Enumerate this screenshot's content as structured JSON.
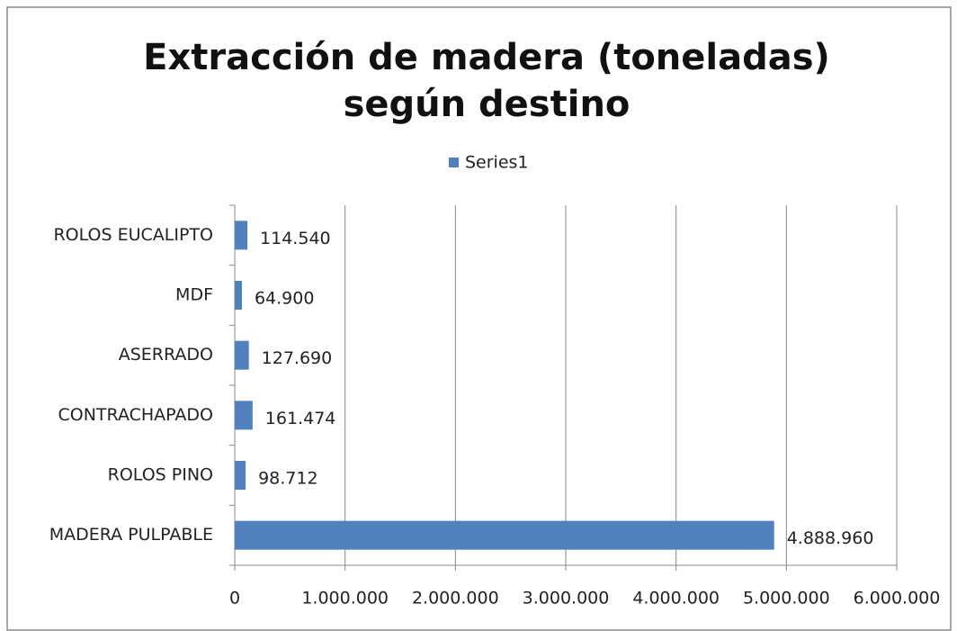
{
  "chart_data": {
    "type": "bar",
    "orientation": "horizontal",
    "title": "Extracción de madera (toneladas) según destino",
    "categories": [
      "MADERA PULPABLE",
      "ROLOS PINO",
      "CONTRACHAPADO",
      "ASERRADO",
      "MDF",
      "ROLOS EUCALIPTO"
    ],
    "series": [
      {
        "name": "Series1",
        "color": "#4f81bd",
        "values": [
          4888960,
          98712,
          161474,
          127690,
          64900,
          114540
        ],
        "value_labels": [
          "4.888.960",
          "98.712",
          "161.474",
          "127.690",
          "64.900",
          "114.540"
        ]
      }
    ],
    "xlim": [
      0,
      6000000
    ],
    "xticks": [
      0,
      {
        "value": 1000000,
        "label": "1.000.000"
      },
      {
        "value": 2000000,
        "label": "2.000.000"
      },
      {
        "value": 3000000,
        "label": "3.000.000"
      },
      {
        "value": 4000000,
        "label": "4.000.000"
      },
      {
        "value": 5000000,
        "label": "5.000.000"
      },
      {
        "value": 6000000,
        "label": "6.000.000"
      }
    ],
    "grid": true,
    "legend": "top"
  }
}
